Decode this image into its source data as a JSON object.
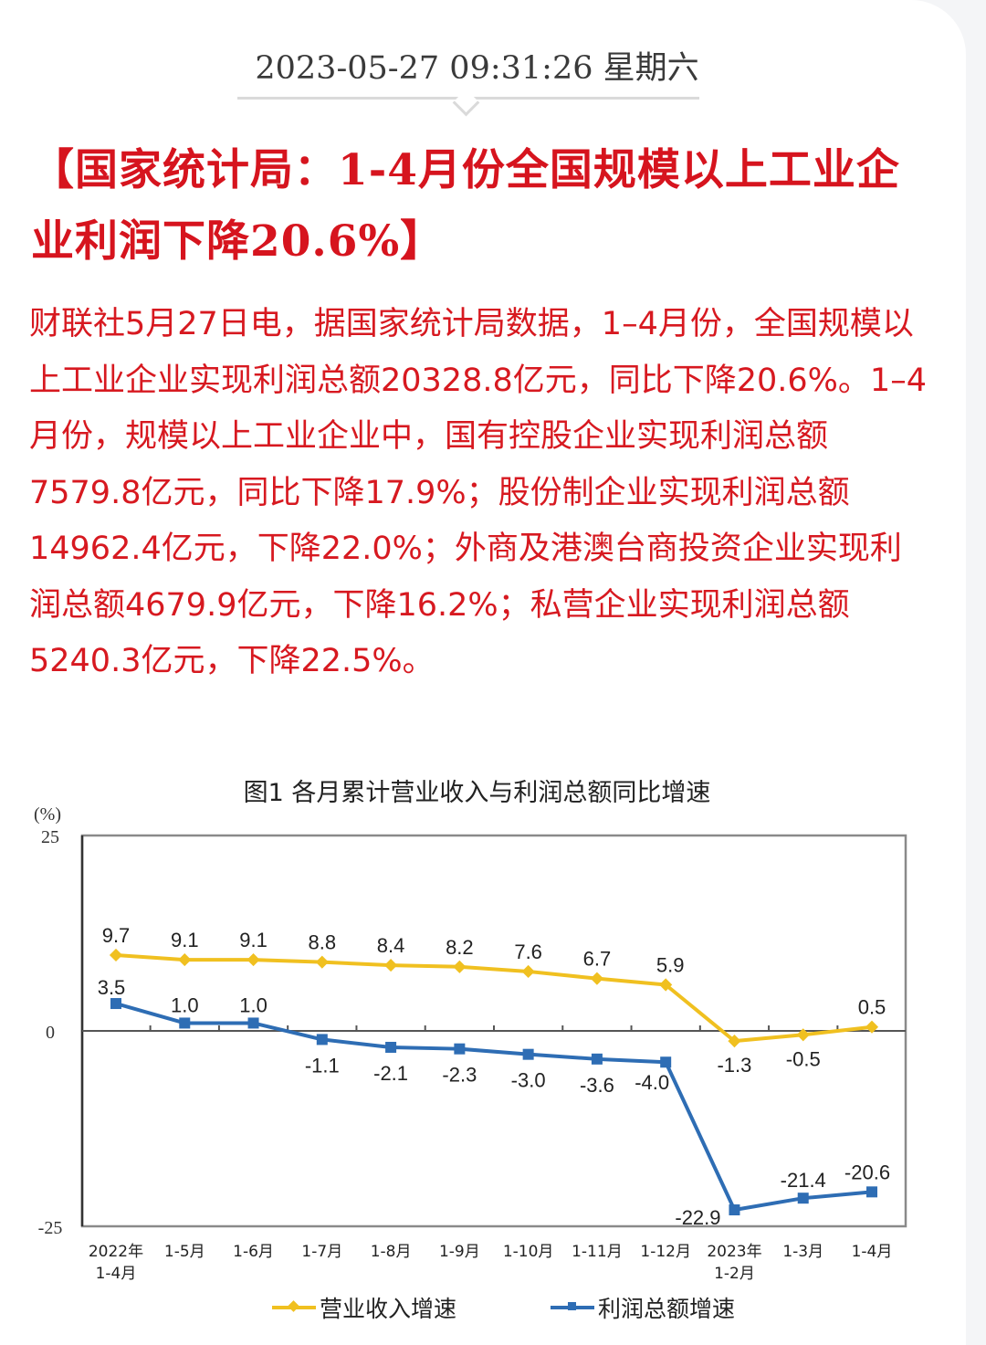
{
  "header": {
    "datetime": "2023-05-27 09:31:26 星期六"
  },
  "article": {
    "headline": "【国家统计局：1-4月份全国规模以上工业企业利润下降20.6%】",
    "body": "财联社5月27日电，据国家统计局数据，1–4月份，全国规模以上工业企业实现利润总额20328.8亿元，同比下降20.6%。1–4月份，规模以上工业企业中，国有控股企业实现利润总额7579.8亿元，同比下降17.9%；股份制企业实现利润总额14962.4亿元，下降22.0%；外商及港澳台商投资企业实现利润总额4679.9亿元，下降16.2%；私营企业实现利润总额5240.3亿元，下降22.5%。",
    "text_color": "#d71920"
  },
  "chart": {
    "title": "图1  各月累计营业收入与利润总额同比增速",
    "unit_label": "(%)",
    "legend": {
      "revenue": "营业收入增速",
      "profit": "利润总额增速"
    }
  },
  "chart_data": {
    "type": "line",
    "title": "图1  各月累计营业收入与利润总额同比增速",
    "xlabel": "",
    "ylabel": "(%)",
    "ylim": [
      -25,
      25
    ],
    "yticks": [
      25,
      0,
      -25
    ],
    "grid": false,
    "legend_position": "bottom",
    "categories": [
      [
        "2022年",
        "1-4月"
      ],
      [
        "1-5月"
      ],
      [
        "1-6月"
      ],
      [
        "1-7月"
      ],
      [
        "1-8月"
      ],
      [
        "1-9月"
      ],
      [
        "1-10月"
      ],
      [
        "1-11月"
      ],
      [
        "1-12月"
      ],
      [
        "2023年",
        "1-2月"
      ],
      [
        "1-3月"
      ],
      [
        "1-4月"
      ]
    ],
    "series": [
      {
        "name": "营业收入增速",
        "color": "#f0c020",
        "marker": "diamond",
        "values": [
          9.7,
          9.1,
          9.1,
          8.8,
          8.4,
          8.2,
          7.6,
          6.7,
          5.9,
          -1.3,
          -0.5,
          0.5
        ]
      },
      {
        "name": "利润总额增速",
        "color": "#2e6db4",
        "marker": "square",
        "values": [
          3.5,
          1.0,
          1.0,
          -1.1,
          -2.1,
          -2.3,
          -3.0,
          -3.6,
          -4.0,
          -22.9,
          -21.4,
          -20.6
        ]
      }
    ]
  }
}
